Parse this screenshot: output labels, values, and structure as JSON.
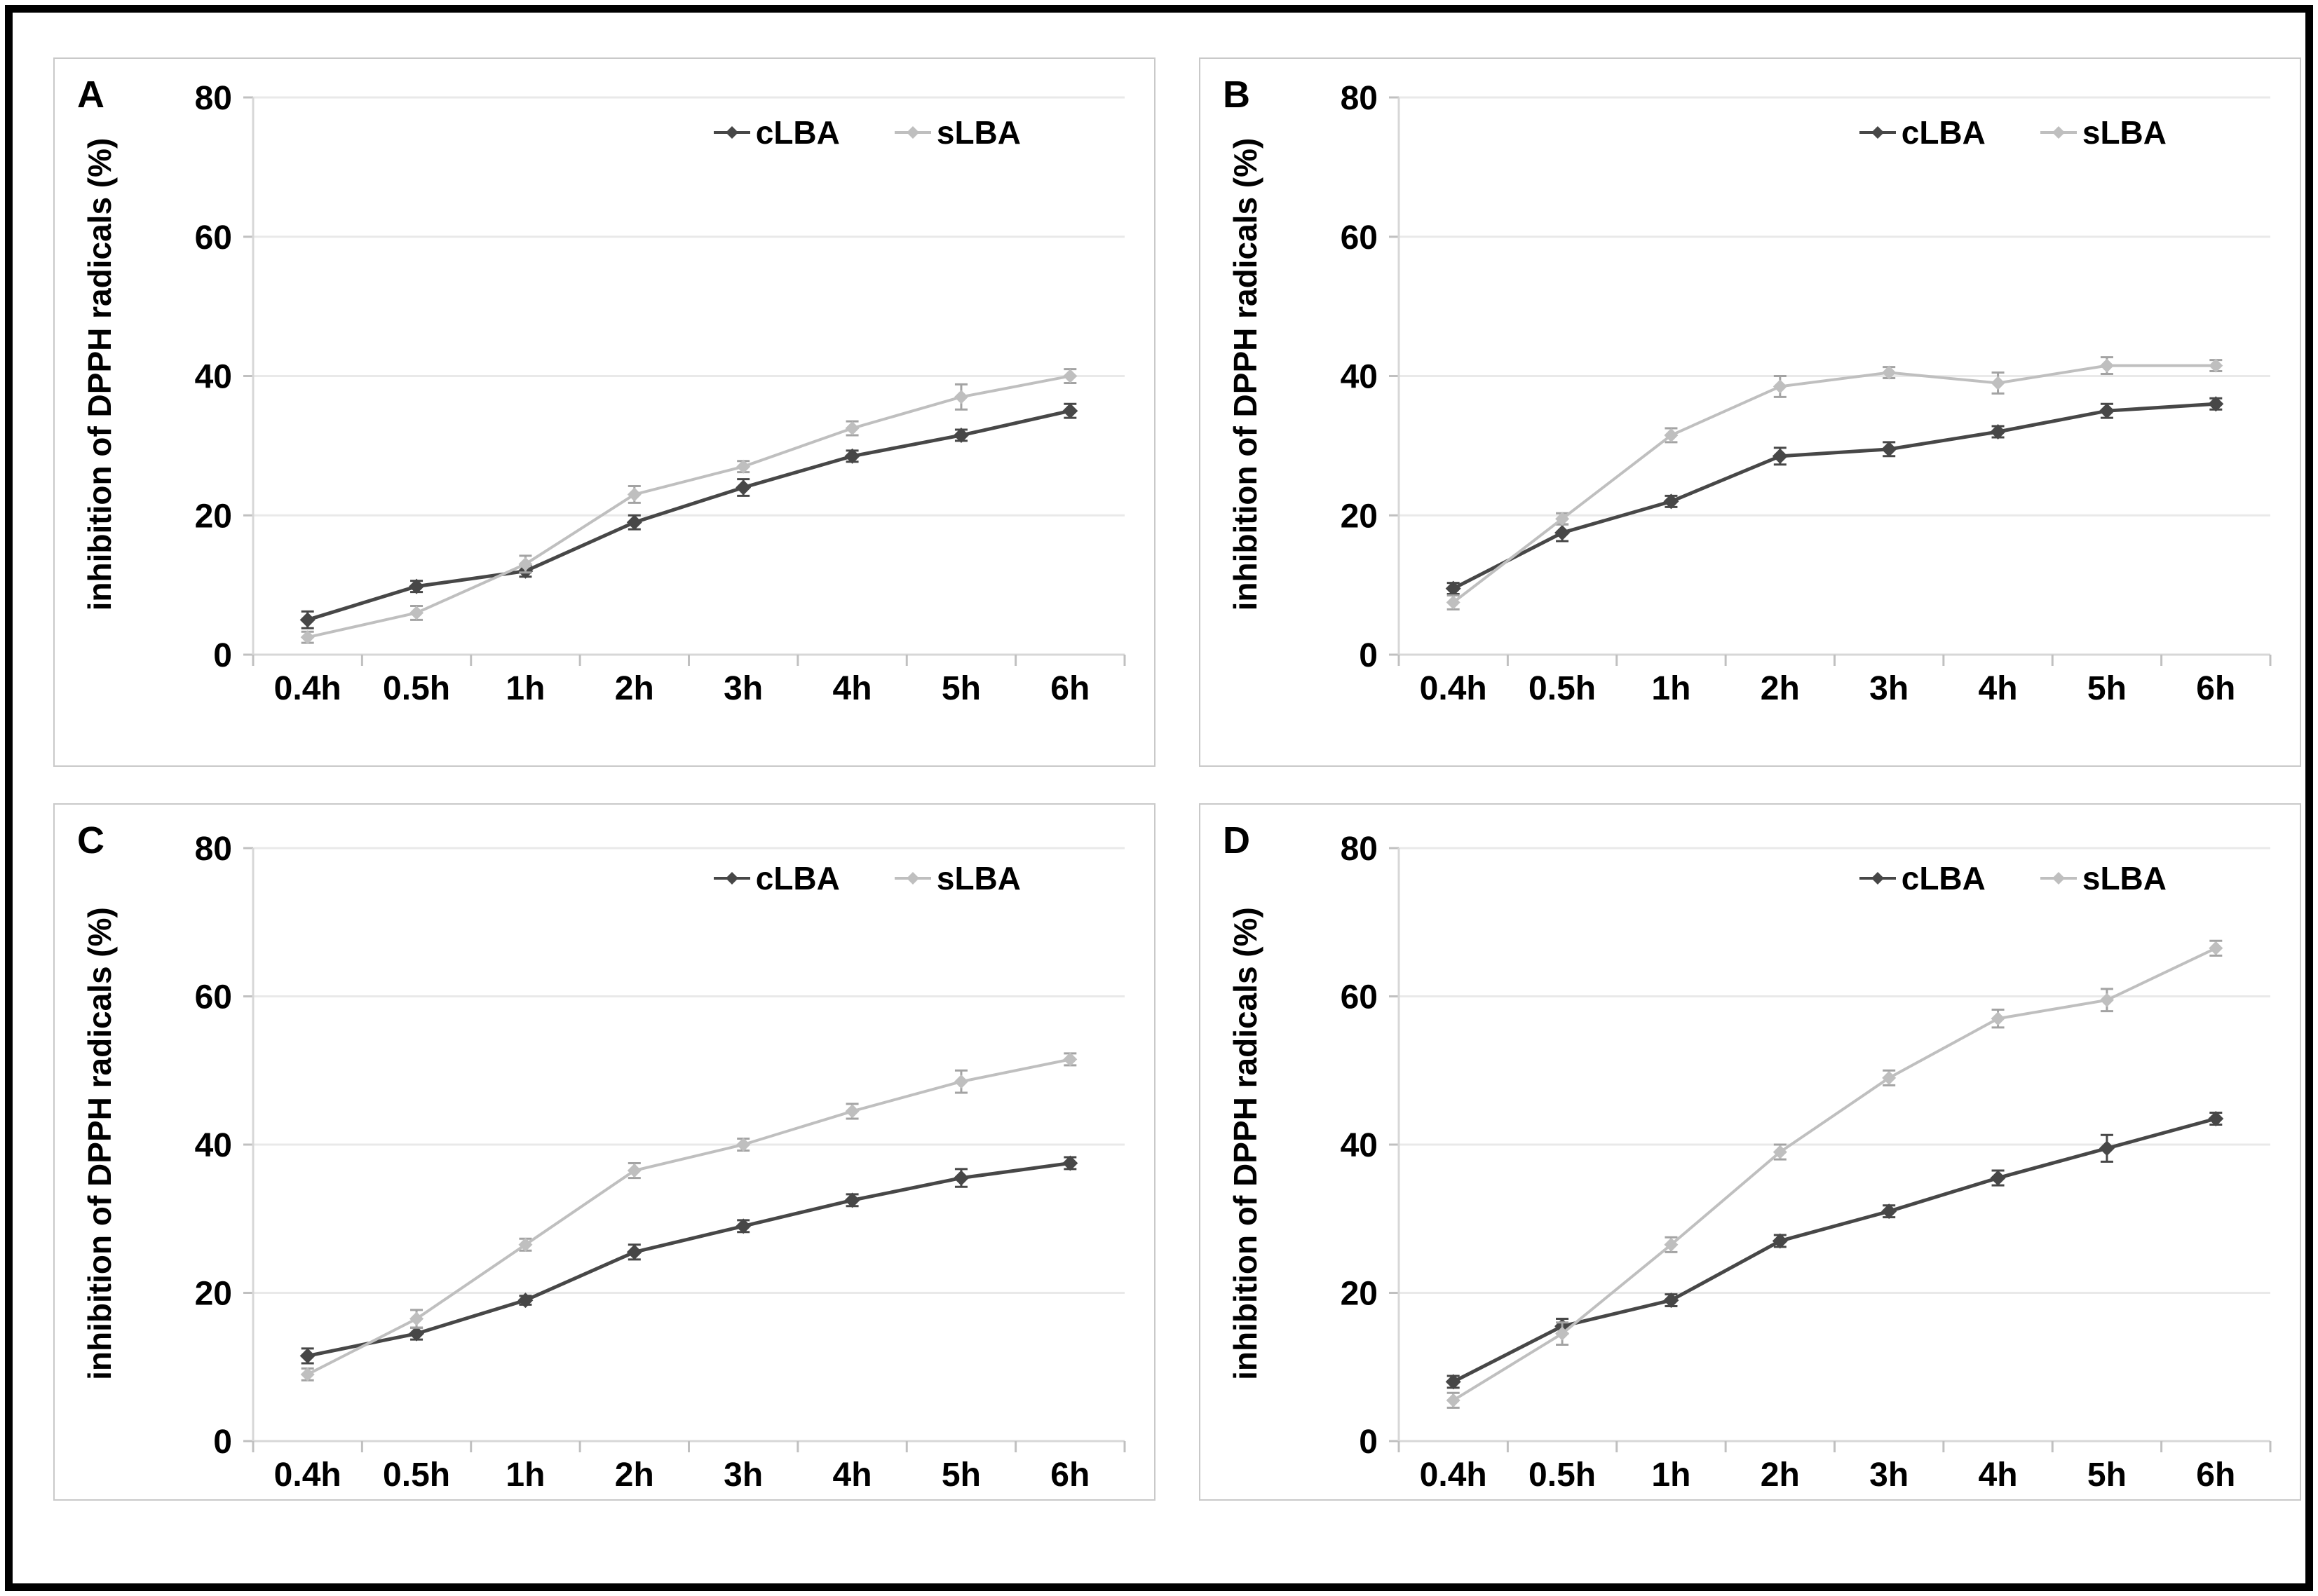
{
  "figure": {
    "background": "#ffffff",
    "outer_border_color": "#000000",
    "panel_border_color": "#c9c9c9",
    "gridline_color": "#e9e9e9",
    "axis_line_color": "#d7d7d7",
    "tick_color": "#c0c0c0",
    "text_color": "#000000",
    "panel_labels": [
      "A",
      "B",
      "C",
      "D"
    ]
  },
  "chart_data": [
    {
      "type": "line",
      "panel": "A",
      "title": "",
      "xlabel": "",
      "ylabel": "inhibition of DPPH radicals (%)",
      "categories": [
        "0.4h",
        "0.5h",
        "1h",
        "2h",
        "3h",
        "4h",
        "5h",
        "6h"
      ],
      "yticks": [
        0,
        20,
        40,
        60,
        80
      ],
      "ylim": [
        0,
        80
      ],
      "grid": true,
      "legend_position": "top-right",
      "series": [
        {
          "name": "cLBA",
          "color": "#474747",
          "error_color": "#474747",
          "marker": "diamond",
          "values": [
            5,
            9.8,
            12,
            19,
            24,
            28.5,
            31.5,
            35
          ],
          "errors": [
            1.2,
            0.8,
            0.8,
            1,
            1.2,
            0.8,
            0.8,
            1
          ]
        },
        {
          "name": "sLBA",
          "color": "#bfbfbf",
          "error_color": "#a3a3a3",
          "marker": "diamond",
          "values": [
            2.5,
            6,
            13,
            23,
            27,
            32.5,
            37,
            40
          ],
          "errors": [
            0.8,
            1,
            1.2,
            1.2,
            0.8,
            1,
            1.8,
            1
          ]
        }
      ]
    },
    {
      "type": "line",
      "panel": "B",
      "title": "",
      "xlabel": "",
      "ylabel": "inhibition of DPPH radicals (%)",
      "categories": [
        "0.4h",
        "0.5h",
        "1h",
        "2h",
        "3h",
        "4h",
        "5h",
        "6h"
      ],
      "yticks": [
        0,
        20,
        40,
        60,
        80
      ],
      "ylim": [
        0,
        80
      ],
      "grid": true,
      "legend_position": "top-right",
      "series": [
        {
          "name": "cLBA",
          "color": "#474747",
          "error_color": "#474747",
          "marker": "diamond",
          "values": [
            9.5,
            17.5,
            22,
            28.5,
            29.5,
            32,
            35,
            36
          ],
          "errors": [
            0.8,
            1.2,
            0.8,
            1.2,
            1,
            0.8,
            1,
            0.8
          ]
        },
        {
          "name": "sLBA",
          "color": "#bfbfbf",
          "error_color": "#a3a3a3",
          "marker": "diamond",
          "values": [
            7.5,
            19.5,
            31.5,
            38.5,
            40.5,
            39,
            41.5,
            41.5
          ],
          "errors": [
            1,
            0.8,
            1,
            1.5,
            0.8,
            1.5,
            1.2,
            0.8
          ]
        }
      ]
    },
    {
      "type": "line",
      "panel": "C",
      "title": "",
      "xlabel": "",
      "ylabel": "inhibition of DPPH radicals (%)",
      "categories": [
        "0.4h",
        "0.5h",
        "1h",
        "2h",
        "3h",
        "4h",
        "5h",
        "6h"
      ],
      "yticks": [
        0,
        20,
        40,
        60,
        80
      ],
      "ylim": [
        0,
        80
      ],
      "grid": true,
      "legend_position": "top-right",
      "series": [
        {
          "name": "cLBA",
          "color": "#474747",
          "error_color": "#474747",
          "marker": "diamond",
          "values": [
            11.5,
            14.5,
            19,
            25.5,
            29,
            32.5,
            35.5,
            37.5
          ],
          "errors": [
            1,
            0.8,
            0.6,
            1,
            0.8,
            0.8,
            1.2,
            0.8
          ]
        },
        {
          "name": "sLBA",
          "color": "#bfbfbf",
          "error_color": "#a3a3a3",
          "marker": "diamond",
          "values": [
            9,
            16.5,
            26.5,
            36.5,
            40,
            44.5,
            48.5,
            51.5
          ],
          "errors": [
            0.8,
            1.2,
            0.8,
            1,
            0.8,
            1,
            1.5,
            0.8
          ]
        }
      ]
    },
    {
      "type": "line",
      "panel": "D",
      "title": "",
      "xlabel": "",
      "ylabel": "inhibition of DPPH radicals (%)",
      "categories": [
        "0.4h",
        "0.5h",
        "1h",
        "2h",
        "3h",
        "4h",
        "5h",
        "6h"
      ],
      "yticks": [
        0,
        20,
        40,
        60,
        80
      ],
      "ylim": [
        0,
        80
      ],
      "grid": true,
      "legend_position": "top-right",
      "series": [
        {
          "name": "cLBA",
          "color": "#474747",
          "error_color": "#474747",
          "marker": "diamond",
          "values": [
            8,
            15.5,
            19,
            27,
            31,
            35.5,
            39.5,
            43.5
          ],
          "errors": [
            0.8,
            1,
            0.8,
            0.8,
            0.8,
            1,
            1.8,
            0.8
          ]
        },
        {
          "name": "sLBA",
          "color": "#bfbfbf",
          "error_color": "#a3a3a3",
          "marker": "diamond",
          "values": [
            5.5,
            14.5,
            26.5,
            39,
            49,
            57,
            59.5,
            66.5
          ],
          "errors": [
            1,
            1.5,
            1,
            1,
            1,
            1.2,
            1.5,
            1
          ]
        }
      ]
    }
  ]
}
